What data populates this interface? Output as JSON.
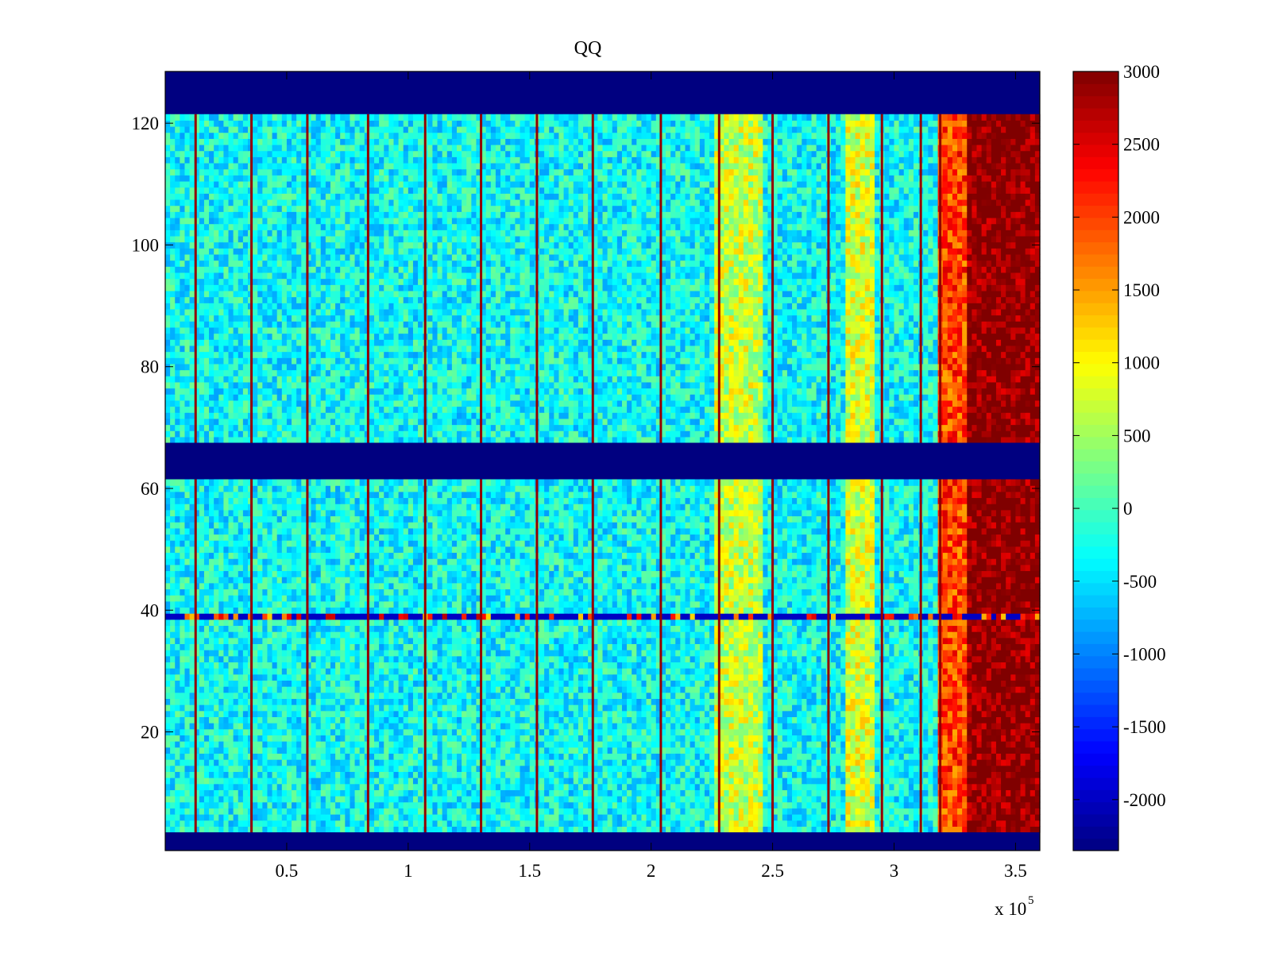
{
  "chart_data": {
    "type": "heatmap",
    "title": "QQ",
    "xlabel": "",
    "ylabel": "",
    "x_multiplier_label": {
      "base": "x 10",
      "exponent": "5"
    },
    "xlim": [
      0,
      3.6
    ],
    "ylim": [
      0.5,
      128.5
    ],
    "x_ticks": [
      0.5,
      1,
      1.5,
      2,
      2.5,
      3,
      3.5
    ],
    "x_tick_labels": [
      "0.5",
      "1",
      "1.5",
      "2",
      "2.5",
      "3",
      "3.5"
    ],
    "y_ticks": [
      20,
      40,
      60,
      80,
      100,
      120
    ],
    "y_tick_labels": [
      "20",
      "40",
      "60",
      "80",
      "100",
      "120"
    ],
    "colorbar": {
      "colormap": "jet",
      "clim": [
        -2350,
        3000
      ],
      "ticks": [
        -2000,
        -1500,
        -1000,
        -500,
        0,
        500,
        1000,
        1500,
        2000,
        2500,
        3000
      ],
      "tick_labels": [
        "-2000",
        "-1500",
        "-1000",
        "-500",
        "0",
        "500",
        "1000",
        "1500",
        "2000",
        "2500",
        "3000"
      ]
    },
    "empty_row_bands": [
      [
        0.5,
        3.5
      ],
      [
        61.5,
        67.5
      ],
      [
        121.5,
        128.5
      ]
    ],
    "empty_band_value": -2350,
    "background_value": -300,
    "vertical_stripes_x": [
      0.125,
      0.355,
      0.585,
      0.835,
      1.07,
      1.3,
      1.53,
      1.76,
      2.04,
      2.28,
      2.5,
      2.73,
      2.95,
      3.11,
      3.19
    ],
    "stripe_value": 2900,
    "warm_regions": [
      {
        "x_range": [
          2.27,
          2.45
        ],
        "value": 700
      },
      {
        "x_range": [
          2.8,
          2.92
        ],
        "value": 800
      },
      {
        "x_range": [
          3.18,
          3.3
        ],
        "value": 2000
      },
      {
        "x_range": [
          3.3,
          3.6
        ],
        "value": 3000
      }
    ],
    "anomalous_row_y": 39,
    "anomalous_row_value": -2000,
    "grid": false,
    "colorbar_position": "right"
  }
}
